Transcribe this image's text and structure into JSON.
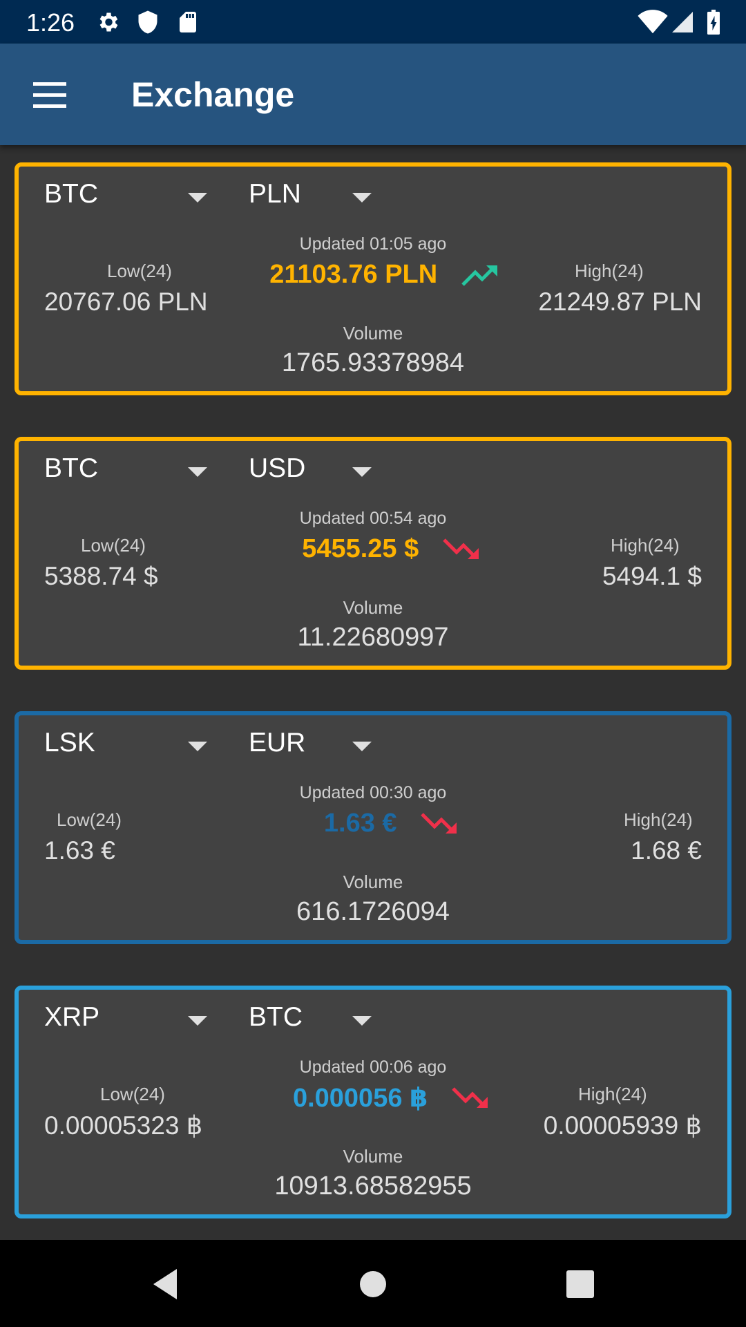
{
  "status_bar": {
    "time": "1:26",
    "icons": [
      "settings-icon",
      "shield-icon",
      "sd-card-icon",
      "wifi-icon",
      "signal-icon",
      "battery-icon"
    ]
  },
  "app_bar": {
    "title": "Exchange",
    "menu_icon": "hamburger-menu-icon"
  },
  "cards": [
    {
      "base": "BTC",
      "quote": "PLN",
      "updated": "Updated 01:05 ago",
      "price": "21103.76 PLN",
      "price_color": "#ffb300",
      "trend": "up",
      "trend_color": "#26c6a0",
      "low_label": "Low(24)",
      "low": "20767.06 PLN",
      "high_label": "High(24)",
      "high": "21249.87 PLN",
      "volume_label": "Volume",
      "volume": "1765.93378984",
      "border_color": "#ffb300"
    },
    {
      "base": "BTC",
      "quote": "USD",
      "updated": "Updated 00:54 ago",
      "price": "5455.25 $",
      "price_color": "#ffb300",
      "trend": "down",
      "trend_color": "#f0304a",
      "low_label": "Low(24)",
      "low": "5388.74 $",
      "high_label": "High(24)",
      "high": "5494.1 $",
      "volume_label": "Volume",
      "volume": "11.22680997",
      "border_color": "#ffb300"
    },
    {
      "base": "LSK",
      "quote": "EUR",
      "updated": "Updated 00:30 ago",
      "price": "1.63 €",
      "price_color": "#1b6aa5",
      "trend": "down",
      "trend_color": "#f0304a",
      "low_label": "Low(24)",
      "low": "1.63 €",
      "high_label": "High(24)",
      "high": "1.68 €",
      "volume_label": "Volume",
      "volume": "616.1726094",
      "border_color": "#1b6aa5"
    },
    {
      "base": "XRP",
      "quote": "BTC",
      "updated": "Updated 00:06 ago",
      "price": "0.000056 ฿",
      "price_color": "#2aa0db",
      "trend": "down",
      "trend_color": "#f0304a",
      "low_label": "Low(24)",
      "low": "0.00005323 ฿",
      "high_label": "High(24)",
      "high": "0.00005939 ฿",
      "volume_label": "Volume",
      "volume": "10913.68582955",
      "border_color": "#2aa0db"
    }
  ],
  "nav_bar": {
    "buttons": [
      "back-icon",
      "home-icon",
      "recents-icon"
    ]
  }
}
